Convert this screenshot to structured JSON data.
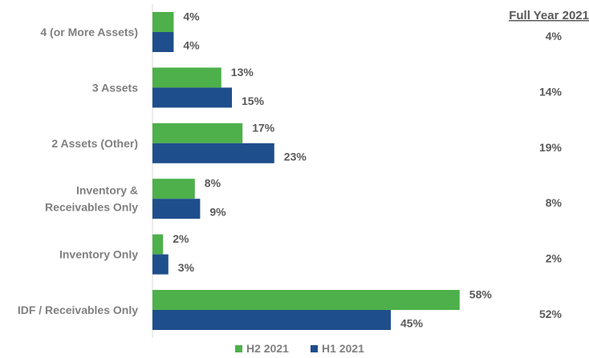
{
  "chart_data": {
    "type": "bar",
    "orientation": "horizontal",
    "categories": [
      [
        "4 (or More Assets)"
      ],
      [
        "3 Assets"
      ],
      [
        "2 Assets (Other)"
      ],
      [
        "Inventory &",
        "Receivables Only"
      ],
      [
        "Inventory Only"
      ],
      [
        "IDF / Receivables Only"
      ]
    ],
    "series": [
      {
        "name": "H2 2021",
        "color": "#4db04a",
        "values": [
          4,
          13,
          17,
          8,
          2,
          58
        ]
      },
      {
        "name": "H1 2021",
        "color": "#1f4e8c",
        "values": [
          4,
          15,
          23,
          9,
          3,
          45
        ]
      }
    ],
    "value_suffix": "%",
    "full_year": {
      "title": "Full Year 2021",
      "values": [
        4,
        14,
        19,
        8,
        2,
        52
      ]
    },
    "xlim": [
      0,
      60
    ],
    "grid": false,
    "legend": "bottom-center"
  }
}
